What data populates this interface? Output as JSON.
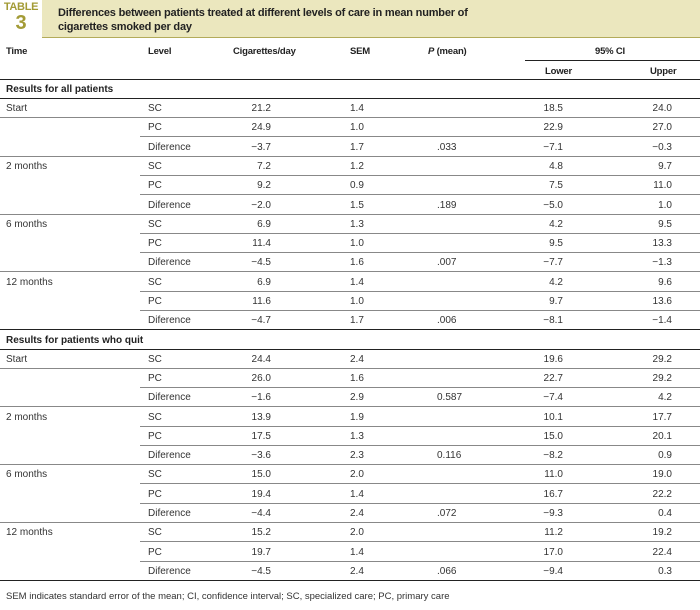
{
  "table_label": "TABLE",
  "table_number": "3",
  "title": "Differences between patients treated at different levels of care in mean number of cigarettes smoked per day",
  "columns": {
    "time": "Time",
    "level": "Level",
    "cigs": "Cigarettes/day",
    "sem": "SEM",
    "p_italic": "P",
    "p_rest": " (mean)",
    "ci": "95% CI",
    "lower": "Lower",
    "upper": "Upper"
  },
  "sections": [
    {
      "title": "Results for all patients",
      "rows": [
        [
          "Start",
          "SC",
          "21.2",
          "1.4",
          "",
          "18.5",
          "24.0"
        ],
        [
          "",
          "PC",
          "24.9",
          "1.0",
          "",
          "22.9",
          "27.0"
        ],
        [
          "",
          "Diference",
          "−3.7",
          "1.7",
          ".033",
          "−7.1",
          "−0.3"
        ],
        [
          "2 months",
          "SC",
          "7.2",
          "1.2",
          "",
          "4.8",
          "9.7"
        ],
        [
          "",
          "PC",
          "9.2",
          "0.9",
          "",
          "7.5",
          "11.0"
        ],
        [
          "",
          "Diference",
          "−2.0",
          "1.5",
          ".189",
          "−5.0",
          "1.0"
        ],
        [
          "6 months",
          "SC",
          "6.9",
          "1.3",
          "",
          "4.2",
          "9.5"
        ],
        [
          "",
          "PC",
          "11.4",
          "1.0",
          "",
          "9.5",
          "13.3"
        ],
        [
          "",
          "Diference",
          "−4.5",
          "1.6",
          ".007",
          "−7.7",
          "−1.3"
        ],
        [
          "12 months",
          "SC",
          "6.9",
          "1.4",
          "",
          "4.2",
          "9.6"
        ],
        [
          "",
          "PC",
          "11.6",
          "1.0",
          "",
          "9.7",
          "13.6"
        ],
        [
          "",
          "Diference",
          "−4.7",
          "1.7",
          ".006",
          "−8.1",
          "−1.4"
        ]
      ]
    },
    {
      "title": "Results for patients who quit",
      "rows": [
        [
          "Start",
          "SC",
          "24.4",
          "2.4",
          "",
          "19.6",
          "29.2"
        ],
        [
          "",
          "PC",
          "26.0",
          "1.6",
          "",
          "22.7",
          "29.2"
        ],
        [
          "",
          "Diference",
          "−1.6",
          "2.9",
          "0.587",
          "−7.4",
          "4.2"
        ],
        [
          "2 months",
          "SC",
          "13.9",
          "1.9",
          "",
          "10.1",
          "17.7"
        ],
        [
          "",
          "PC",
          "17.5",
          "1.3",
          "",
          "15.0",
          "20.1"
        ],
        [
          "",
          "Diference",
          "−3.6",
          "2.3",
          "0.116",
          "−8.2",
          "0.9"
        ],
        [
          "6 months",
          "SC",
          "15.0",
          "2.0",
          "",
          "11.0",
          "19.0"
        ],
        [
          "",
          "PC",
          "19.4",
          "1.4",
          "",
          "16.7",
          "22.2"
        ],
        [
          "",
          "Diference",
          "−4.4",
          "2.4",
          ".072",
          "−9.3",
          "0.4"
        ],
        [
          "12 months",
          "SC",
          "15.2",
          "2.0",
          "",
          "11.2",
          "19.2"
        ],
        [
          "",
          "PC",
          "19.7",
          "1.4",
          "",
          "17.0",
          "22.4"
        ],
        [
          "",
          "Diference",
          "−4.5",
          "2.4",
          ".066",
          "−9.4",
          "0.3"
        ]
      ]
    }
  ],
  "footnote": "SEM indicates standard error of the mean; CI, confidence interval; SC, specialized care; PC, primary care",
  "colors": {
    "accent": "#a39b36",
    "title_bg": "#ebe7be"
  }
}
